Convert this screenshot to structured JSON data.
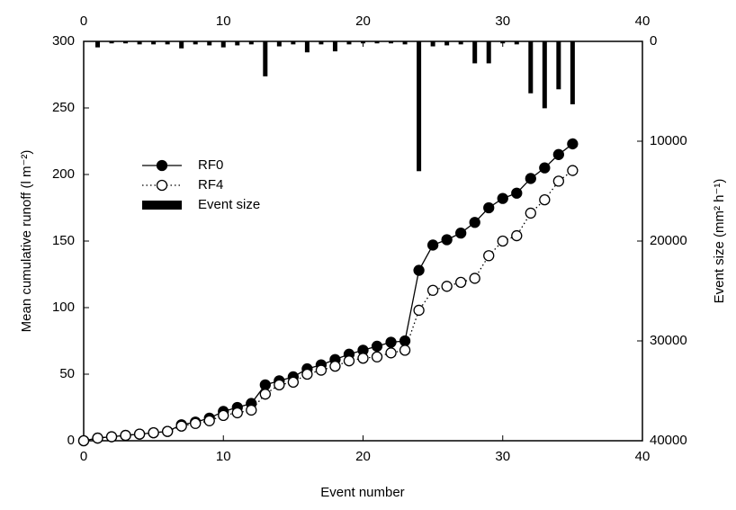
{
  "chart_data": {
    "type": "line",
    "x_label": "Event number",
    "y_label": "Mean cumulative runoff (l m⁻²)",
    "y2_label": "Event size (mm² h⁻¹)",
    "x": [
      0,
      1,
      2,
      3,
      4,
      5,
      6,
      7,
      8,
      9,
      10,
      11,
      12,
      13,
      14,
      15,
      16,
      17,
      18,
      19,
      20,
      21,
      22,
      23,
      24,
      25,
      26,
      27,
      28,
      29,
      30,
      31,
      32,
      33,
      34,
      35
    ],
    "series": [
      {
        "name": "RF0",
        "color": "#000000",
        "marker": "filled",
        "line": "solid",
        "values": [
          0,
          2,
          3,
          4,
          5,
          6,
          7,
          12,
          14,
          17,
          22,
          25,
          28,
          42,
          45,
          48,
          54,
          57,
          61,
          65,
          68,
          71,
          74,
          75,
          128,
          147,
          151,
          156,
          164,
          175,
          182,
          186,
          197,
          205,
          215,
          223
        ]
      },
      {
        "name": "RF4",
        "color": "#000000",
        "marker": "open",
        "line": "dotted",
        "values": [
          0,
          2,
          3,
          4,
          5,
          6,
          7,
          11,
          13,
          15,
          19,
          21,
          23,
          35,
          42,
          44,
          50,
          53,
          56,
          60,
          62,
          63,
          66,
          68,
          98,
          113,
          116,
          119,
          122,
          139,
          150,
          154,
          171,
          181,
          195,
          203
        ]
      },
      {
        "name": "Event size",
        "color": "#000000",
        "kind": "bar",
        "axis": "y2",
        "values": [
          null,
          600,
          200,
          200,
          300,
          300,
          300,
          700,
          300,
          400,
          600,
          400,
          300,
          3500,
          500,
          300,
          1100,
          300,
          1000,
          300,
          200,
          200,
          200,
          300,
          13000,
          500,
          400,
          300,
          2200,
          2200,
          200,
          300,
          5200,
          6700,
          4800,
          6300
        ]
      }
    ],
    "xlim": [
      0,
      40
    ],
    "xticks": [
      0,
      10,
      20,
      30,
      40
    ],
    "ylim": [
      0,
      300
    ],
    "yticks": [
      0,
      50,
      100,
      150,
      200,
      250,
      300
    ],
    "y2lim": [
      40000,
      0
    ],
    "y2ticks": [
      0,
      10000,
      20000,
      30000,
      40000
    ],
    "legend": "upper left"
  }
}
